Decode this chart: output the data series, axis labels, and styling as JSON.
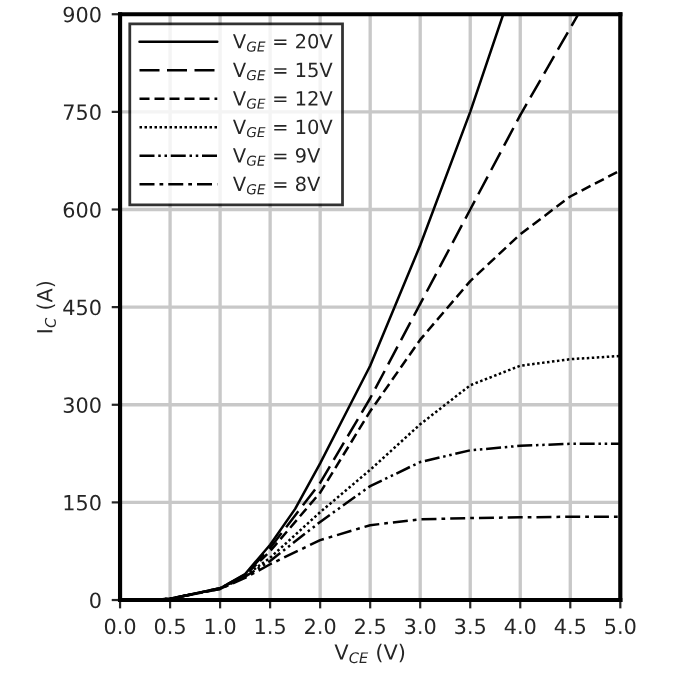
{
  "chart_data": {
    "type": "line",
    "xlabel": "V$_{CE}$ (V)",
    "ylabel": "I$_{C}$ (A)",
    "xlim": [
      0,
      5
    ],
    "ylim": [
      0,
      900
    ],
    "xticks": [
      {
        "value": 0,
        "label": "0.0"
      },
      {
        "value": 0.5,
        "label": "0.5"
      },
      {
        "value": 1,
        "label": "1.0"
      },
      {
        "value": 1.5,
        "label": "1.5"
      },
      {
        "value": 2,
        "label": "2.0"
      },
      {
        "value": 2.5,
        "label": "2.5"
      },
      {
        "value": 3,
        "label": "3.0"
      },
      {
        "value": 3.5,
        "label": "3.5"
      },
      {
        "value": 4,
        "label": "4.0"
      },
      {
        "value": 4.5,
        "label": "4.5"
      },
      {
        "value": 5,
        "label": "5.0"
      }
    ],
    "yticks": [
      0,
      150,
      300,
      450,
      600,
      750,
      900
    ],
    "grid": true,
    "legend": "top left",
    "series": [
      {
        "name": "V$_{GE}$ = 20V",
        "color": "#000000",
        "line_style": "solid",
        "x": [
          0,
          0.3,
          0.5,
          1.0,
          1.25,
          1.5,
          1.75,
          2.0,
          2.25,
          2.5,
          3.0,
          3.5,
          3.83
        ],
        "values": [
          0,
          0,
          2,
          18,
          40,
          85,
          140,
          210,
          285,
          360,
          545,
          750,
          900
        ]
      },
      {
        "name": "V$_{GE}$ = 15V",
        "color": "#000000",
        "line_style": "longdash",
        "x": [
          0,
          0.3,
          0.5,
          1.0,
          1.25,
          1.5,
          2.0,
          2.5,
          3.0,
          3.5,
          4.0,
          4.58
        ],
        "values": [
          0,
          0,
          2,
          18,
          39,
          80,
          180,
          310,
          455,
          600,
          745,
          900
        ]
      },
      {
        "name": "V$_{GE}$ = 12V",
        "color": "#000000",
        "line_style": "dashed",
        "x": [
          0,
          0.3,
          0.5,
          1.0,
          1.25,
          1.5,
          2.0,
          2.5,
          3.0,
          3.5,
          4.0,
          4.5,
          5.0
        ],
        "values": [
          0,
          0,
          2,
          18,
          38,
          75,
          165,
          290,
          400,
          490,
          562,
          620,
          660
        ]
      },
      {
        "name": "V$_{GE}$ = 10V",
        "color": "#000000",
        "line_style": "dotted",
        "x": [
          0,
          0.3,
          0.5,
          1.0,
          1.25,
          1.5,
          2.0,
          2.5,
          3.0,
          3.5,
          4.0,
          4.5,
          5.0
        ],
        "values": [
          0,
          0,
          2,
          18,
          37,
          65,
          135,
          200,
          270,
          330,
          360,
          370,
          375
        ]
      },
      {
        "name": "V$_{GE}$ = 9V",
        "color": "#000000",
        "line_style": "dashdotdot",
        "x": [
          0,
          0.3,
          0.5,
          1.0,
          1.25,
          1.5,
          2.0,
          2.5,
          3.0,
          3.5,
          4.0,
          4.5,
          5.0
        ],
        "values": [
          0,
          0,
          2,
          17,
          36,
          60,
          120,
          175,
          212,
          230,
          237,
          240,
          240
        ]
      },
      {
        "name": "V$_{GE}$ = 8V",
        "color": "#000000",
        "line_style": "dashdot",
        "x": [
          0,
          0.3,
          0.5,
          1.0,
          1.25,
          1.5,
          2.0,
          2.5,
          3.0,
          3.5,
          4.0,
          4.5,
          5.0
        ],
        "values": [
          0,
          0,
          2,
          17,
          34,
          55,
          92,
          115,
          124,
          126,
          127,
          128,
          128
        ]
      }
    ]
  }
}
